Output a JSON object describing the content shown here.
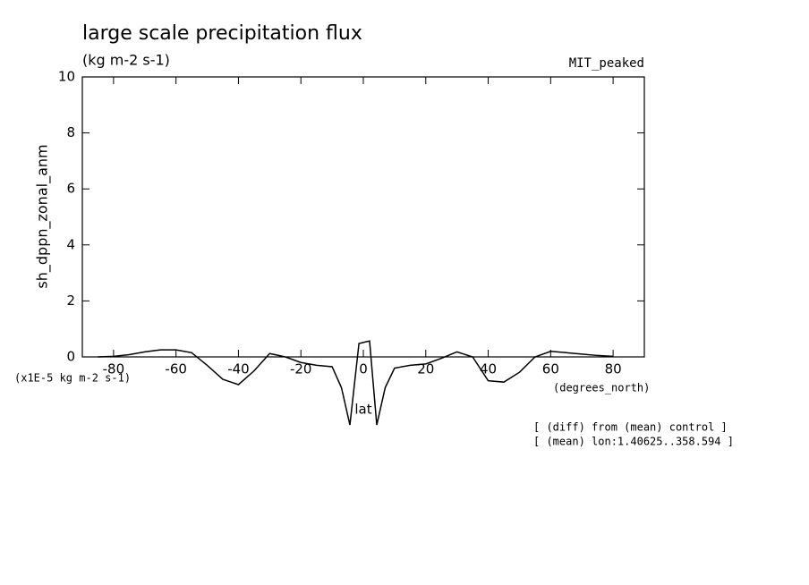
{
  "chart_data": {
    "type": "line",
    "title": "large scale precipitation flux",
    "subtitle": "(kg m-2 s-1)",
    "corner_label": "MIT_peaked",
    "ylabel": "sh_dppn_zonal_anm",
    "scale_label": "(x1E-5 kg m-2 s-1)",
    "xlabel": "lat",
    "xunits": "(degrees_north)",
    "notes": [
      "[ (diff) from (mean) control ]",
      "[ (mean) lon:1.40625..358.594 ]"
    ],
    "xlim": [
      -90,
      90
    ],
    "ylim": [
      0,
      10
    ],
    "xticks": [
      -80,
      -60,
      -40,
      -20,
      0,
      20,
      40,
      60,
      80
    ],
    "yticks": [
      0,
      2,
      4,
      6,
      8,
      10
    ],
    "x": [
      -85,
      -80,
      -75,
      -70,
      -65,
      -60,
      -55,
      -50,
      -45,
      -40,
      -35,
      -30,
      -25,
      -20,
      -15,
      -10,
      -7,
      -4.3,
      -1.4,
      2,
      4.3,
      7,
      10,
      15,
      20,
      25,
      30,
      35,
      40,
      45,
      50,
      55,
      60,
      65,
      70,
      75,
      80
    ],
    "series": [
      {
        "color": "#000000",
        "values": [
          0.0,
          0.02,
          0.08,
          0.18,
          0.25,
          0.25,
          0.15,
          -0.3,
          -0.8,
          -0.99,
          -0.5,
          0.12,
          0.0,
          -0.2,
          -0.3,
          -0.35,
          -1.1,
          -2.43,
          0.48,
          0.57,
          -2.43,
          -1.1,
          -0.4,
          -0.3,
          -0.25,
          -0.05,
          0.18,
          0.0,
          -0.85,
          -0.9,
          -0.55,
          0.0,
          0.2,
          0.15,
          0.1,
          0.05,
          0.02
        ]
      }
    ]
  }
}
